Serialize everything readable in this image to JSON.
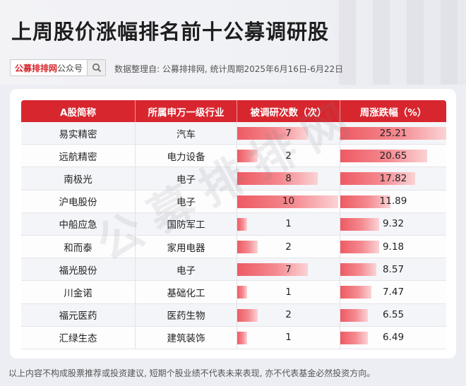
{
  "title": "上周股价涨幅排名前十公募调研股",
  "search": {
    "brand": "公募排排网",
    "suffix": "公众号"
  },
  "source": "数据整理自: 公募排排网, 统计周期2025年6月16日-6月22日",
  "watermark": "公募排排网",
  "table": {
    "headers": [
      "A股简称",
      "所属申万一级行业",
      "被调研次数（次）",
      "周涨跌幅（%）"
    ],
    "rows": [
      {
        "name": "易实精密",
        "industry": "汽车",
        "visits": 7,
        "change": "25.21"
      },
      {
        "name": "远航精密",
        "industry": "电力设备",
        "visits": 2,
        "change": "20.65"
      },
      {
        "name": "南极光",
        "industry": "电子",
        "visits": 8,
        "change": "17.82"
      },
      {
        "name": "沪电股份",
        "industry": "电子",
        "visits": 10,
        "change": "11.89"
      },
      {
        "name": "中船应急",
        "industry": "国防军工",
        "visits": 1,
        "change": "9.32"
      },
      {
        "name": "和而泰",
        "industry": "家用电器",
        "visits": 2,
        "change": "9.18"
      },
      {
        "name": "福光股份",
        "industry": "电子",
        "visits": 7,
        "change": "8.57"
      },
      {
        "name": "川金诺",
        "industry": "基础化工",
        "visits": 1,
        "change": "7.47"
      },
      {
        "name": "福元医药",
        "industry": "医药生物",
        "visits": 2,
        "change": "6.55"
      },
      {
        "name": "汇绿生态",
        "industry": "建筑装饰",
        "visits": 1,
        "change": "6.49"
      }
    ]
  },
  "footer": "以上内容不构成股票推荐或投资建议, 短期个股业绩不代表未来表现, 亦不代表基金必然投资方向。",
  "colors": {
    "header_red": "#d8262f",
    "bar_red": "#ee5a63"
  }
}
